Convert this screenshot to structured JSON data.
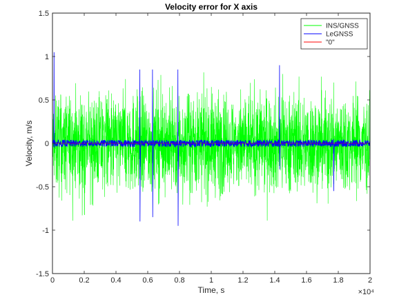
{
  "chart_data": {
    "type": "line",
    "title": "Velocity error for X axis",
    "xlabel": "Time, s",
    "ylabel": "Velocity, m/s",
    "x_exponent_label": "×10⁴",
    "xlim": [
      0,
      20000
    ],
    "ylim": [
      -1.5,
      1.5
    ],
    "x_ticks": [
      0,
      2000,
      4000,
      6000,
      8000,
      10000,
      12000,
      14000,
      16000,
      18000,
      20000
    ],
    "x_tick_labels": [
      "0",
      "0.2",
      "0.4",
      "0.6",
      "0.8",
      "1",
      "1.2",
      "1.4",
      "1.6",
      "1.8",
      "2"
    ],
    "y_ticks": [
      -1.5,
      -1,
      -0.5,
      0,
      0.5,
      1,
      1.5
    ],
    "y_tick_labels": [
      "-1.5",
      "-1",
      "-0.5",
      "0",
      "0.5",
      "1",
      "1.5"
    ],
    "grid": false,
    "legend_position": "top-right",
    "series": [
      {
        "name": "INS/GNSS",
        "color": "#00ff00",
        "kind": "noise",
        "envelope_mean": 0.0,
        "envelope_core": 0.45,
        "envelope_peak_max": 1.2,
        "envelope_peak_min": -1.0
      },
      {
        "name": "LeGNSS",
        "color": "#0000ff",
        "kind": "noise-with-spikes",
        "noise_amplitude": 0.04,
        "spikes": [
          {
            "x": 100,
            "up": 1.05,
            "down": -0.05
          },
          {
            "x": 5500,
            "up": 0.85,
            "down": -0.9
          },
          {
            "x": 6300,
            "up": 0.85,
            "down": -0.85
          },
          {
            "x": 7900,
            "up": 0.85,
            "down": -0.95
          },
          {
            "x": 14300,
            "up": 0.9,
            "down": -0.3
          },
          {
            "x": 17700,
            "up": 0.05,
            "down": -0.55
          }
        ]
      },
      {
        "name": "\"0\"",
        "color": "#ff0000",
        "kind": "constant",
        "value": 0
      }
    ]
  }
}
